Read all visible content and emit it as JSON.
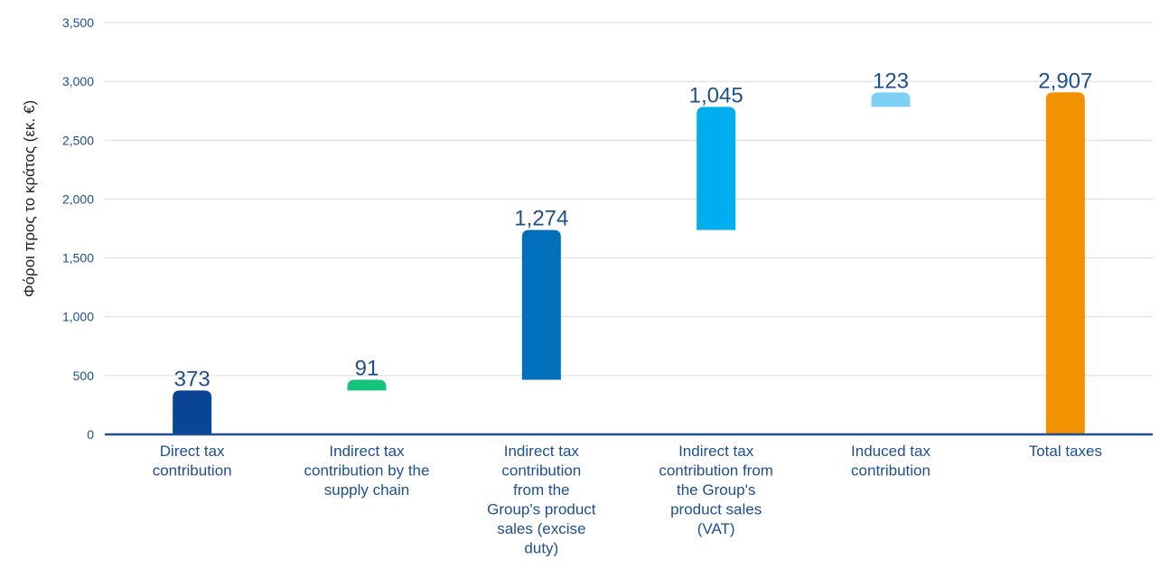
{
  "chart_data": {
    "type": "bar",
    "subtype": "waterfall",
    "title": "",
    "xlabel": "",
    "ylabel": "Φόροι προς το κράτος (εκ. €)",
    "ylim": [
      0,
      3500
    ],
    "yticks": [
      0,
      500,
      1000,
      1500,
      2000,
      2500,
      3000,
      3500
    ],
    "ytick_labels": [
      "0",
      "500",
      "1,000",
      "1,500",
      "2,000",
      "2,500",
      "3,000",
      "3,500"
    ],
    "grid": true,
    "legend": "none",
    "categories": [
      [
        "Direct tax",
        "contribution"
      ],
      [
        "Indirect tax",
        "contribution by the",
        "supply chain"
      ],
      [
        "Indirect tax",
        "contribution",
        "from the",
        "Group's product",
        "sales (excise",
        "duty)"
      ],
      [
        "Indirect tax",
        "contribution from",
        "the Group's",
        "product sales",
        "(VAT)"
      ],
      [
        "Induced tax",
        "contribution"
      ],
      [
        "Total taxes"
      ]
    ],
    "values": [
      373,
      91,
      1274,
      1045,
      123,
      2907
    ],
    "value_labels": [
      "373",
      "91",
      "1,274",
      "1,045",
      "123",
      "2,907"
    ],
    "bases": [
      0,
      373,
      464,
      1738,
      2783,
      0
    ],
    "colors": [
      "#0a4495",
      "#13c47a",
      "#0070bb",
      "#00aeef",
      "#7fd0f5",
      "#f39200"
    ]
  }
}
